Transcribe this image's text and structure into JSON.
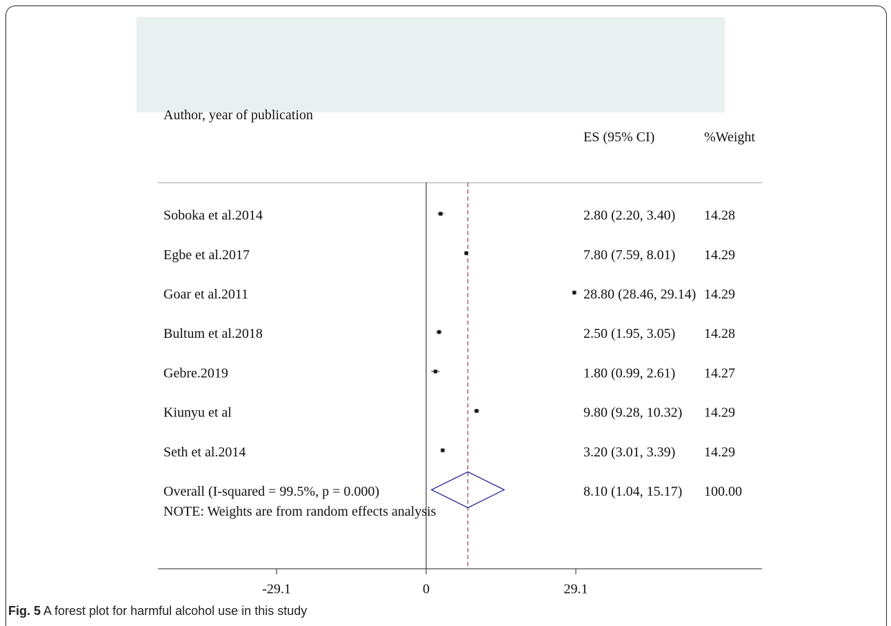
{
  "header": {
    "author_label": "Author, year of publication",
    "es_label": "ES (95% CI)",
    "weight_label": "%Weight"
  },
  "chart_data": {
    "type": "forest",
    "title": "",
    "xlabel": "",
    "ylabel": "",
    "xlim": [
      -39,
      42
    ],
    "x_ticks": [
      -29.1,
      0,
      29.1
    ],
    "x_tick_labels": [
      "-29.1",
      "0",
      "29.1"
    ],
    "studies": [
      {
        "label": "Soboka et al.2014",
        "es": 2.8,
        "lo": 2.2,
        "hi": 3.4,
        "ci_text": "2.80 (2.20, 3.40)",
        "weight": "14.28"
      },
      {
        "label": "Egbe et al.2017",
        "es": 7.8,
        "lo": 7.59,
        "hi": 8.01,
        "ci_text": "7.80 (7.59, 8.01)",
        "weight": "14.29"
      },
      {
        "label": "Goar et al.2011",
        "es": 28.8,
        "lo": 28.46,
        "hi": 29.14,
        "ci_text": "28.80 (28.46, 29.14)",
        "weight": "14.29"
      },
      {
        "label": "Bultum et al.2018",
        "es": 2.5,
        "lo": 1.95,
        "hi": 3.05,
        "ci_text": "2.50 (1.95, 3.05)",
        "weight": "14.28"
      },
      {
        "label": "Gebre.2019",
        "es": 1.8,
        "lo": 0.99,
        "hi": 2.61,
        "ci_text": "1.80 (0.99, 2.61)",
        "weight": "14.27"
      },
      {
        "label": "Kiunyu et al",
        "es": 9.8,
        "lo": 9.28,
        "hi": 10.32,
        "ci_text": "9.80 (9.28, 10.32)",
        "weight": "14.29"
      },
      {
        "label": "Seth et al.2014",
        "es": 3.2,
        "lo": 3.01,
        "hi": 3.39,
        "ci_text": "3.20 (3.01, 3.39)",
        "weight": "14.29"
      }
    ],
    "overall": {
      "label": "Overall (I-squared = 99.5%, p = 0.000)",
      "es": 8.1,
      "lo": 1.04,
      "hi": 15.17,
      "ci_text": "8.10 (1.04, 15.17)",
      "weight": "100.00"
    },
    "note": "NOTE: Weights are from random effects analysis",
    "colors": {
      "diamond": "#1a1a8c",
      "overall_line": "#8b1a3a",
      "marker": "#111111"
    }
  },
  "caption": {
    "fig_label": "Fig. 5",
    "text": "A forest plot for harmful alcohol use in this study"
  }
}
